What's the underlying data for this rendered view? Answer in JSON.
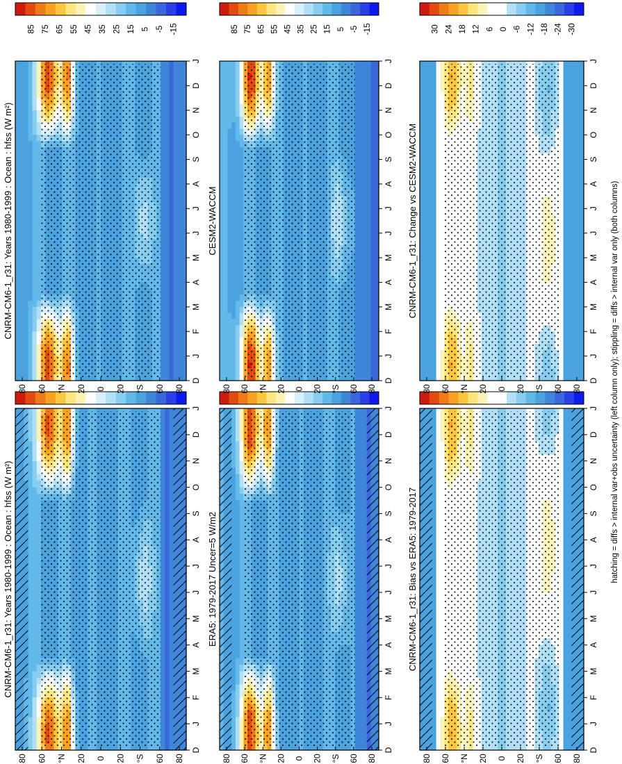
{
  "figure": {
    "footer_note": "hatching = diffs > internal var+obs uncertainty (left column only); stippling = diffs > internal var only (both columns)",
    "month_labels": [
      "D",
      "J",
      "F",
      "M",
      "A",
      "M",
      "J",
      "J",
      "A",
      "S",
      "O",
      "N",
      "D",
      "J"
    ],
    "lat_labels": [
      "80",
      "60",
      "°N",
      "20",
      "0",
      "20",
      "°S",
      "60",
      "80"
    ]
  },
  "chart_data": [
    {
      "type": "heatmap",
      "panel": "left-top",
      "title": "CNRM-CM6-1_r31: Years 1980-1999 : Ocean : hfss (W m²)",
      "colorbar": {
        "ticks": [
          "85",
          "75",
          "65",
          "55",
          "45",
          "35",
          "25",
          "15",
          "5",
          "-5",
          "-15"
        ],
        "min": -20,
        "max": 90
      },
      "hatching": true,
      "stippling": true
    },
    {
      "type": "heatmap",
      "panel": "right-top",
      "title": "CNRM-CM6-1_r31: Years 1980-1999 : Ocean : hfss (W m²)",
      "colorbar": {
        "ticks": [
          "85",
          "75",
          "65",
          "55",
          "45",
          "35",
          "25",
          "15",
          "5",
          "-5",
          "-15"
        ],
        "min": -20,
        "max": 90
      },
      "hatching": false,
      "stippling": true
    },
    {
      "type": "heatmap",
      "panel": "left-middle",
      "title": "ERA5: 1979-2017 Uncer=5 W/m2",
      "colorbar": {
        "ticks": [
          "85",
          "75",
          "65",
          "55",
          "45",
          "35",
          "25",
          "15",
          "5",
          "-5",
          "-15"
        ],
        "min": -20,
        "max": 90
      },
      "hatching": true,
      "stippling": true
    },
    {
      "type": "heatmap",
      "panel": "right-middle",
      "title": "CESM2-WACCM",
      "colorbar": {
        "ticks": [
          "85",
          "75",
          "65",
          "55",
          "45",
          "35",
          "25",
          "15",
          "5",
          "-5",
          "-15"
        ],
        "min": -20,
        "max": 90
      },
      "hatching": false,
      "stippling": true
    },
    {
      "type": "heatmap",
      "panel": "left-bottom",
      "title": "CNRM-CM6-1_r31: Bias vs ERA5: 1979-2017",
      "colorbar": {
        "ticks": [
          "30",
          "24",
          "18",
          "12",
          "6",
          "0",
          "-6",
          "-12",
          "-18",
          "-24",
          "-30"
        ],
        "min": -33,
        "max": 33
      },
      "hatching": true,
      "stippling": true
    },
    {
      "type": "heatmap",
      "panel": "right-bottom",
      "title": "CNRM-CM6-1_r31: Change vs CESM2-WACCM",
      "colorbar": {
        "ticks": [
          "30",
          "24",
          "18",
          "12",
          "6",
          "0",
          "-6",
          "-12",
          "-18",
          "-24",
          "-30"
        ],
        "min": -33,
        "max": 33
      },
      "hatching": false,
      "stippling": true
    }
  ],
  "colors": {
    "abs_scale": [
      "#0d1aef",
      "#2a3fe6",
      "#3a68dc",
      "#3f86d8",
      "#4aa2de",
      "#62b8e8",
      "#86cdf0",
      "#b1e0f6",
      "#d8f0fb",
      "#ffffff",
      "#fbf3b8",
      "#fce57c",
      "#fcc640",
      "#f7a220",
      "#f07a18",
      "#e24a12",
      "#cf1a10"
    ],
    "diff_scale": [
      "#0d1aef",
      "#2a3fe6",
      "#3a68dc",
      "#3f86d8",
      "#4aa2de",
      "#62b8e8",
      "#86cdf0",
      "#b1e0f6",
      "#ffffff",
      "#ffffff",
      "#fbf3b8",
      "#fce57c",
      "#fcc640",
      "#f7a220",
      "#f07a18",
      "#e24a12",
      "#cf1a10"
    ]
  }
}
